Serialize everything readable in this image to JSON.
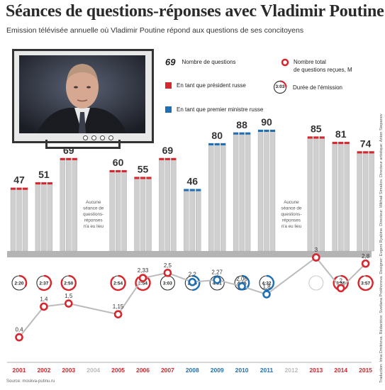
{
  "title": "Séances de questions-réponses avec Vladimir Poutine",
  "subtitle": "Emission télévisée annuelle où Vladimir Poutine répond aux questions de ses concitoyens",
  "legend": {
    "count_sample": "69",
    "count_label": "Nombre de questions",
    "total_label_1": "Nombre total",
    "total_label_2": "de questions reçues, M",
    "president_label": "En tant que président russe",
    "pm_label": "En tant que premier ministre russe",
    "duration_sample": "3:03",
    "duration_label": "Durée de l'émission"
  },
  "colors": {
    "president": "#d7262d",
    "prime_minister": "#1f6fb5",
    "none": "#bbbbbb",
    "stack": "#cfcfcf",
    "base": "#b4b4b4"
  },
  "no_session_text": [
    "Aucune",
    "séance de",
    "questions-",
    "réponses",
    "n'a eu lieu"
  ],
  "credits": "Traduction: Irina Dmitrieva. Rédactrice: Svetlana Prokhorova. Designer: Evgeni Ryabine. Directeur: Mikhail Simakov. Directeur artistique: Anton Stepanov",
  "source": "Source: moskva-putinu.ru",
  "chart_data": {
    "type": "bar",
    "categories": [
      "2001",
      "2002",
      "2003",
      "2004",
      "2005",
      "2006",
      "2007",
      "2008",
      "2009",
      "2010",
      "2011",
      "2012",
      "2013",
      "2014",
      "2015"
    ],
    "series": [
      {
        "name": "Nombre de questions",
        "values": [
          47,
          51,
          69,
          null,
          60,
          55,
          69,
          46,
          80,
          88,
          90,
          null,
          85,
          81,
          74
        ]
      },
      {
        "name": "Nombre total de questions reçues, M",
        "values": [
          0.4,
          1.4,
          1.5,
          null,
          1.15,
          2.33,
          2.5,
          2.2,
          2.27,
          2.06,
          1.8,
          null,
          3,
          2,
          2.8
        ]
      }
    ],
    "value_labels": [
      "0,4",
      "1,4",
      "1,5",
      null,
      "1,15",
      "2,33",
      "2,5",
      "2,2",
      "2,27",
      "2,06",
      "1,8",
      null,
      "3",
      "2",
      "2,8"
    ],
    "durations": [
      "2:20",
      "2:37",
      "2:50",
      null,
      "2:54",
      "2:54",
      "3:03",
      "2:30",
      "4:01",
      "4:25",
      "4:32",
      null,
      "",
      "3:55",
      "3:57"
    ],
    "role": [
      "president",
      "president",
      "president",
      "none",
      "president",
      "president",
      "president",
      "pm",
      "pm",
      "pm",
      "pm",
      "none",
      "president",
      "president",
      "president"
    ]
  }
}
